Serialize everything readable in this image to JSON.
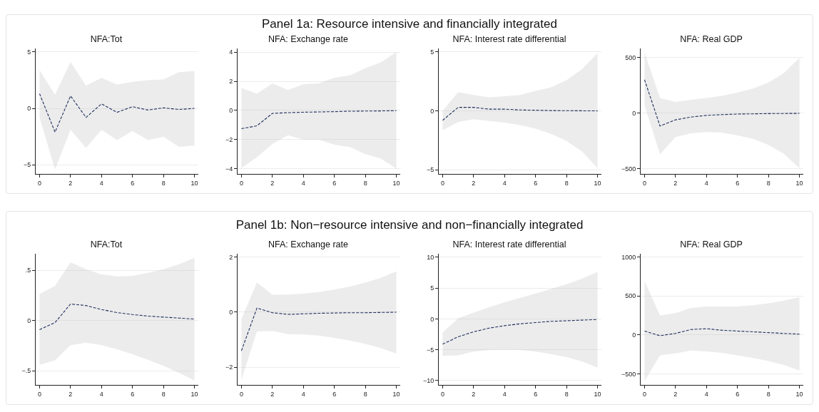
{
  "chart_data": [
    {
      "type": "line",
      "title": "NFA:Tot",
      "annotations": [
        "Panel 1a: Resource intensive and financially integrated"
      ],
      "x": [
        0,
        1,
        2,
        3,
        4,
        5,
        6,
        7,
        8,
        9,
        10
      ],
      "series": [
        {
          "color": "#1f2f5e",
          "line_style": "dashed",
          "values": [
            1.3,
            -2.1,
            1.1,
            -0.8,
            0.4,
            -0.35,
            0.15,
            -0.15,
            0.05,
            -0.1,
            0.0
          ],
          "upper": [
            3.4,
            1.2,
            4.1,
            2.0,
            2.7,
            2.1,
            2.35,
            2.5,
            2.55,
            3.2,
            3.3
          ],
          "lower": [
            -0.8,
            -5.4,
            -1.9,
            -3.5,
            -1.9,
            -2.8,
            -2.0,
            -2.8,
            -2.5,
            -3.4,
            -3.3
          ]
        }
      ],
      "xlim": [
        -0.25,
        10.25
      ],
      "xticks": [
        0,
        2,
        4,
        6,
        8,
        10
      ],
      "ylim": [
        -5.8,
        5.3
      ],
      "yticks": [
        {
          "value": -5,
          "label": "−5"
        },
        0,
        5
      ],
      "grid": "y"
    },
    {
      "type": "line",
      "title": "NFA: Exchange rate",
      "x": [
        0,
        1,
        2,
        3,
        4,
        5,
        6,
        7,
        8,
        9,
        10
      ],
      "series": [
        {
          "color": "#1f2f5e",
          "line_style": "dashed",
          "values": [
            -1.25,
            -1.05,
            -0.2,
            -0.15,
            -0.12,
            -0.1,
            -0.08,
            -0.05,
            -0.04,
            -0.03,
            -0.01
          ],
          "upper": [
            1.55,
            1.15,
            1.85,
            1.4,
            1.8,
            1.85,
            2.25,
            2.4,
            2.9,
            3.3,
            4.0
          ],
          "lower": [
            -3.95,
            -3.2,
            -2.3,
            -1.7,
            -2.0,
            -2.0,
            -2.35,
            -2.5,
            -3.0,
            -3.3,
            -4.0
          ]
        }
      ],
      "xlim": [
        -0.25,
        10.25
      ],
      "xticks": [
        0,
        2,
        4,
        6,
        8,
        10
      ],
      "ylim": [
        -4.35,
        4.25
      ],
      "yticks": [
        {
          "value": -4,
          "label": "−4"
        },
        {
          "value": -2,
          "label": "−2"
        },
        0,
        2,
        4
      ],
      "grid": "y"
    },
    {
      "type": "line",
      "title": "NFA: Interest rate differential",
      "x": [
        0,
        1,
        2,
        3,
        4,
        5,
        6,
        7,
        8,
        9,
        10
      ],
      "series": [
        {
          "color": "#1f2f5e",
          "line_style": "dashed",
          "values": [
            -0.8,
            0.3,
            0.3,
            0.15,
            0.15,
            0.08,
            0.06,
            0.03,
            0.02,
            0.01,
            0.0
          ],
          "upper": [
            0.0,
            1.6,
            1.35,
            1.15,
            1.25,
            1.35,
            1.7,
            2.0,
            2.6,
            3.55,
            4.9
          ],
          "lower": [
            -1.65,
            -0.95,
            -0.7,
            -0.85,
            -1.0,
            -1.2,
            -1.5,
            -1.95,
            -2.55,
            -3.45,
            -4.85
          ]
        }
      ],
      "xlim": [
        -0.25,
        10.25
      ],
      "xticks": [
        0,
        2,
        4,
        6,
        8,
        10
      ],
      "ylim": [
        -5.35,
        5.3
      ],
      "yticks": [
        {
          "value": -5,
          "label": "−5"
        },
        0,
        5
      ],
      "grid": "y"
    },
    {
      "type": "line",
      "title": "NFA: Real GDP",
      "x": [
        0,
        1,
        2,
        3,
        4,
        5,
        6,
        7,
        8,
        9,
        10
      ],
      "series": [
        {
          "color": "#1f2f5e",
          "line_style": "dashed",
          "values": [
            300,
            -115,
            -60,
            -35,
            -20,
            -13,
            -8,
            -6,
            -4,
            -3,
            -2
          ],
          "upper": [
            545,
            135,
            100,
            120,
            135,
            155,
            185,
            220,
            275,
            360,
            495
          ],
          "lower": [
            70,
            -370,
            -215,
            -180,
            -170,
            -175,
            -200,
            -230,
            -285,
            -365,
            -495
          ]
        }
      ],
      "xlim": [
        -0.25,
        10.25
      ],
      "xticks": [
        0,
        2,
        4,
        6,
        8,
        10
      ],
      "ylim": [
        -545,
        580
      ],
      "yticks": [
        {
          "value": -500,
          "label": "−500"
        },
        0,
        500
      ],
      "grid": "y"
    },
    {
      "type": "line",
      "title": "NFA:Tot",
      "annotations": [
        "Panel 1b: Non−resource intensive and non−financially integrated"
      ],
      "x": [
        0,
        1,
        2,
        3,
        4,
        5,
        6,
        7,
        8,
        9,
        10
      ],
      "series": [
        {
          "color": "#1f2f5e",
          "line_style": "dashed",
          "values": [
            -0.09,
            -0.02,
            0.165,
            0.15,
            0.11,
            0.08,
            0.06,
            0.045,
            0.035,
            0.025,
            0.015
          ],
          "upper": [
            0.265,
            0.345,
            0.58,
            0.51,
            0.46,
            0.44,
            0.445,
            0.475,
            0.51,
            0.56,
            0.625
          ],
          "lower": [
            -0.44,
            -0.395,
            -0.245,
            -0.22,
            -0.245,
            -0.285,
            -0.335,
            -0.39,
            -0.45,
            -0.52,
            -0.595
          ]
        }
      ],
      "xlim": [
        -0.25,
        10.25
      ],
      "xticks": [
        0,
        2,
        4,
        6,
        8,
        10
      ],
      "ylim": [
        -0.64,
        0.665
      ],
      "yticks": [
        {
          "value": -0.5,
          "label": "−.5"
        },
        0,
        {
          "value": 0.5,
          "label": ".5"
        }
      ],
      "grid": "y"
    },
    {
      "type": "line",
      "title": "NFA: Exchange rate",
      "x": [
        0,
        1,
        2,
        3,
        4,
        5,
        6,
        7,
        8,
        9,
        10
      ],
      "series": [
        {
          "color": "#1f2f5e",
          "line_style": "dashed",
          "values": [
            -1.4,
            0.15,
            -0.02,
            -0.08,
            -0.06,
            -0.04,
            -0.03,
            -0.02,
            -0.02,
            -0.01,
            0.0
          ],
          "upper": [
            -0.25,
            1.08,
            0.63,
            0.64,
            0.67,
            0.73,
            0.82,
            0.93,
            1.07,
            1.25,
            1.48
          ],
          "lower": [
            -2.45,
            -0.7,
            -0.68,
            -0.8,
            -0.81,
            -0.85,
            -0.93,
            -1.03,
            -1.15,
            -1.3,
            -1.5
          ]
        }
      ],
      "xlim": [
        -0.25,
        10.25
      ],
      "xticks": [
        0,
        2,
        4,
        6,
        8,
        10
      ],
      "ylim": [
        -2.64,
        2.12
      ],
      "yticks": [
        {
          "value": -2,
          "label": "−2"
        },
        0,
        2
      ],
      "grid": "y"
    },
    {
      "type": "line",
      "title": "NFA: Interest rate differential",
      "x": [
        0,
        1,
        2,
        3,
        4,
        5,
        6,
        7,
        8,
        9,
        10
      ],
      "series": [
        {
          "color": "#1f2f5e",
          "line_style": "dashed",
          "values": [
            -4.1,
            -2.9,
            -2.1,
            -1.5,
            -1.1,
            -0.8,
            -0.6,
            -0.4,
            -0.3,
            -0.2,
            -0.1
          ],
          "upper": [
            -2.2,
            0.1,
            1.0,
            1.9,
            2.7,
            3.4,
            4.1,
            4.85,
            5.6,
            6.5,
            7.6
          ],
          "lower": [
            -6.0,
            -5.9,
            -5.3,
            -5.05,
            -5.0,
            -5.05,
            -5.3,
            -5.7,
            -6.2,
            -6.9,
            -7.9
          ]
        }
      ],
      "xlim": [
        -0.25,
        10.25
      ],
      "xticks": [
        0,
        2,
        4,
        6,
        8,
        10
      ],
      "ylim": [
        -10.7,
        10.55
      ],
      "yticks": [
        {
          "value": -10,
          "label": "−10"
        },
        {
          "value": -5,
          "label": "−5"
        },
        0,
        5,
        10
      ],
      "grid": "y"
    },
    {
      "type": "line",
      "title": "NFA: Real GDP",
      "x": [
        0,
        1,
        2,
        3,
        4,
        5,
        6,
        7,
        8,
        9,
        10
      ],
      "series": [
        {
          "color": "#1f2f5e",
          "line_style": "dashed",
          "values": [
            50,
            -10,
            20,
            70,
            80,
            60,
            50,
            40,
            30,
            20,
            10
          ],
          "upper": [
            690,
            250,
            280,
            345,
            365,
            365,
            365,
            380,
            405,
            440,
            485
          ],
          "lower": [
            -590,
            -260,
            -235,
            -200,
            -210,
            -230,
            -260,
            -295,
            -335,
            -385,
            -455
          ]
        }
      ],
      "xlim": [
        -0.25,
        10.25
      ],
      "xticks": [
        0,
        2,
        4,
        6,
        8,
        10
      ],
      "ylim": [
        -640,
        1040
      ],
      "yticks": [
        {
          "value": -500,
          "label": "−500"
        },
        0,
        500,
        1000
      ],
      "grid": "y"
    }
  ]
}
